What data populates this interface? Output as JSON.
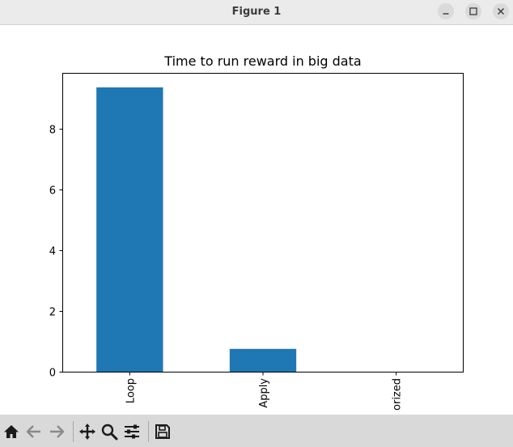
{
  "window": {
    "title": "Figure 1"
  },
  "window_controls": {
    "minimize_icon": "minimize-icon",
    "maximize_icon": "maximize-icon",
    "close_icon": "close-icon"
  },
  "toolbar": {
    "icons": [
      "home-icon",
      "back-icon",
      "forward-icon",
      "pan-icon",
      "zoom-icon",
      "configure-subplots-icon",
      "save-icon"
    ]
  },
  "colors": {
    "bar": "#1f77b4",
    "titlebar": "#ebebeb",
    "toolbar": "#d9d9d9"
  },
  "chart_data": {
    "type": "bar",
    "title": "Time to run reward in big data",
    "xlabel": "",
    "ylabel": "",
    "categories": [
      "Loop",
      "Apply",
      "Vectorized"
    ],
    "tick_labels_visible": [
      "Loop",
      "Apply",
      "orized"
    ],
    "values": [
      9.35,
      0.75,
      0.0
    ],
    "ylim": [
      0,
      9.8
    ],
    "yticks": [
      0,
      2,
      4,
      6,
      8
    ],
    "grid": false,
    "legend": "none"
  }
}
